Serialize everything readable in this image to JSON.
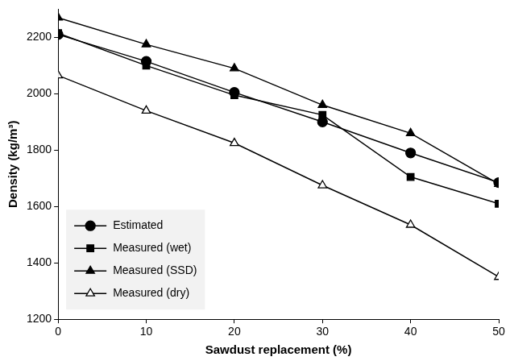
{
  "chart_data": {
    "type": "line",
    "x_label": "Sawdust replacement (%)",
    "y_label": "Density (kg/m³)",
    "x": [
      0,
      10,
      20,
      30,
      40,
      50
    ],
    "series": [
      {
        "name": "Estimated",
        "color": "#000000",
        "marker": "circle",
        "values": [
          2210,
          2115,
          2005,
          1900,
          1790,
          1685
        ]
      },
      {
        "name": "Measured (wet)",
        "color": "#000000",
        "marker": "square",
        "values": [
          2215,
          2100,
          1995,
          1925,
          1705,
          1610
        ]
      },
      {
        "name": "Measured (SSD)",
        "color": "#000000",
        "marker": "triangle",
        "values": [
          2270,
          2175,
          2090,
          1960,
          1860,
          1680
        ]
      },
      {
        "name": "Measured (dry)",
        "color": "#000000",
        "marker": "open-triangle",
        "values": [
          2065,
          1940,
          1825,
          1675,
          1535,
          1350
        ]
      }
    ],
    "xlim": [
      0,
      50
    ],
    "xticks": [
      0,
      10,
      20,
      30,
      40,
      50
    ],
    "ylim": [
      1200,
      2300
    ],
    "yticks": [
      1200,
      1400,
      1600,
      1800,
      2000,
      2200
    ],
    "grid": false,
    "legend": "lower left"
  }
}
